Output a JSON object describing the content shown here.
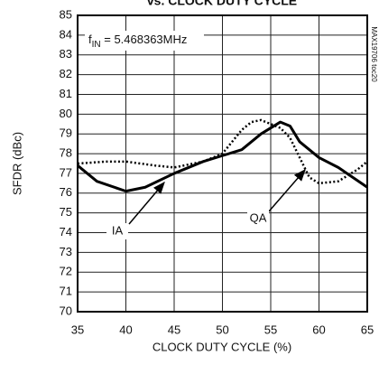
{
  "chart_data": {
    "type": "line",
    "title": "vs. CLOCK DUTY CYCLE",
    "x_label": "CLOCK DUTY CYCLE (%)",
    "y_label": "SFDR (dBc)",
    "annotation_parts": [
      "f",
      "IN",
      " = 5.468363MHz"
    ],
    "side_note": "MAX19706 toc20",
    "xlim": [
      35,
      65
    ],
    "ylim": [
      70,
      85
    ],
    "xticks": [
      35,
      40,
      45,
      50,
      55,
      60,
      65
    ],
    "yticks": [
      70,
      71,
      72,
      73,
      74,
      75,
      76,
      77,
      78,
      79,
      80,
      81,
      82,
      83,
      84,
      85
    ],
    "grid": true,
    "series": [
      {
        "name": "IA",
        "color": "#000000",
        "style": "solid",
        "x": [
          35,
          37,
          40,
          42,
          45,
          48,
          50,
          52,
          54,
          56,
          57,
          58,
          60,
          62,
          65
        ],
        "values": [
          77.4,
          76.6,
          76.1,
          76.3,
          77.0,
          77.6,
          77.9,
          78.2,
          79.0,
          79.6,
          79.4,
          78.6,
          77.8,
          77.3,
          76.3
        ]
      },
      {
        "name": "QA",
        "color": "#000000",
        "style": "dotted",
        "x": [
          35,
          38,
          40,
          43,
          45,
          48,
          50,
          52,
          53,
          54,
          56,
          57,
          58,
          59,
          60,
          62,
          64,
          65
        ],
        "values": [
          77.5,
          77.6,
          77.6,
          77.4,
          77.3,
          77.6,
          78.0,
          79.2,
          79.6,
          79.7,
          79.3,
          78.8,
          77.8,
          76.8,
          76.5,
          76.6,
          77.2,
          77.6
        ]
      }
    ]
  }
}
